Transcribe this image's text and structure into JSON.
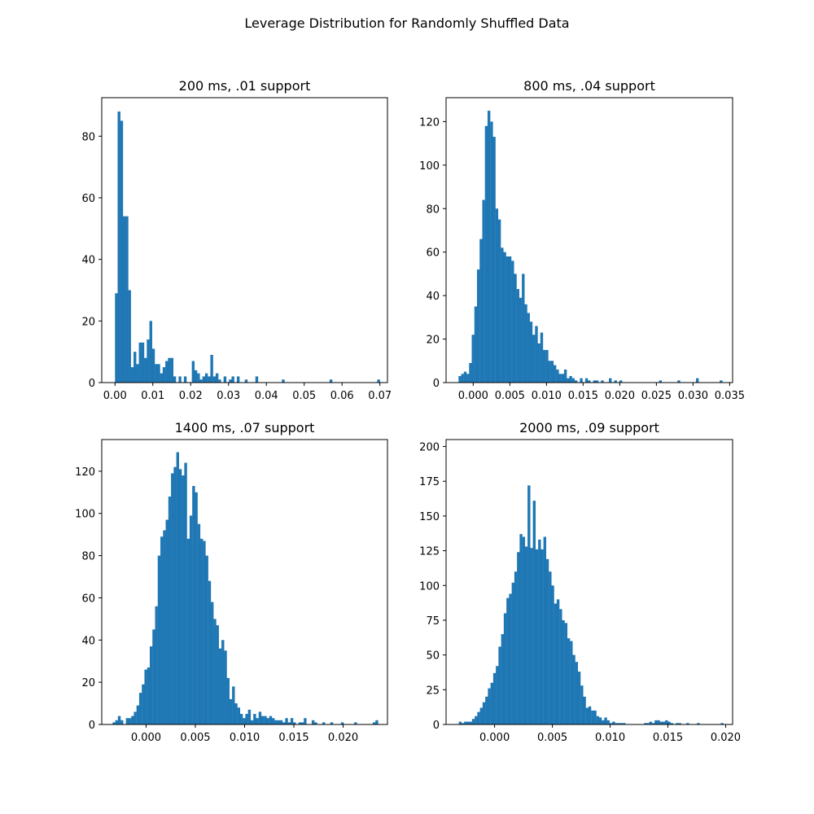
{
  "figure": {
    "title": "Leverage Distribution for Randomly Shuffled Data",
    "bar_color": "#1f77b4"
  },
  "chart_data": [
    {
      "type": "bar",
      "title": "200 ms, .01 support",
      "xlim": [
        -0.0035,
        0.072
      ],
      "ylim": [
        0,
        92.5
      ],
      "xticks": [
        0.0,
        0.01,
        0.02,
        0.03,
        0.04,
        0.05,
        0.06,
        0.07
      ],
      "xtick_labels": [
        "0.00",
        "0.01",
        "0.02",
        "0.03",
        "0.04",
        "0.05",
        "0.06",
        "0.07"
      ],
      "yticks": [
        0,
        20,
        40,
        60,
        80
      ],
      "ytick_labels": [
        "0",
        "20",
        "40",
        "60",
        "80"
      ],
      "bin_start": 0.0,
      "bin_width": 0.0007,
      "counts": [
        29,
        88,
        85,
        54,
        54,
        30,
        5,
        10,
        6,
        13,
        13,
        8,
        14,
        20,
        11,
        6,
        6,
        3,
        5,
        7,
        8,
        8,
        2,
        0,
        2,
        0,
        2,
        0,
        0,
        7,
        4,
        3,
        1,
        2,
        3,
        2,
        9,
        2,
        3,
        1,
        0,
        2,
        0,
        1,
        2,
        0,
        2,
        0,
        0,
        1,
        0,
        0,
        0,
        2,
        0,
        0,
        0,
        0,
        0,
        0,
        0,
        0,
        0,
        1,
        0,
        0,
        0,
        0,
        0,
        0,
        0,
        0,
        0,
        0,
        0,
        0,
        0,
        0,
        0,
        0,
        0,
        1,
        0,
        0,
        0,
        0,
        0,
        0,
        0,
        0,
        0,
        0,
        0,
        0,
        0,
        0,
        0,
        0,
        0,
        1
      ]
    },
    {
      "type": "bar",
      "title": "800 ms, .04 support",
      "xlim": [
        -0.0037,
        0.0354
      ],
      "ylim": [
        0,
        131
      ],
      "xticks": [
        0.0,
        0.005,
        0.01,
        0.015,
        0.02,
        0.025,
        0.03,
        0.035
      ],
      "xtick_labels": [
        "0.000",
        "0.005",
        "0.010",
        "0.015",
        "0.020",
        "0.025",
        "0.030",
        "0.035"
      ],
      "yticks": [
        0,
        20,
        40,
        60,
        80,
        100,
        120
      ],
      "ytick_labels": [
        "0",
        "20",
        "40",
        "60",
        "80",
        "100",
        "120"
      ],
      "bin_start": -0.002,
      "bin_width": 0.00036,
      "counts": [
        3,
        4,
        5,
        4,
        9,
        22,
        35,
        52,
        66,
        84,
        118,
        125,
        120,
        113,
        80,
        75,
        62,
        60,
        58,
        58,
        56,
        50,
        43,
        39,
        50,
        36,
        32,
        28,
        22,
        26,
        18,
        23,
        15,
        15,
        10,
        10,
        8,
        6,
        4,
        4,
        6,
        2,
        3,
        2,
        1,
        0,
        2,
        0,
        2,
        1,
        0,
        1,
        1,
        0,
        1,
        0,
        0,
        2,
        0,
        1,
        0,
        1,
        0,
        0,
        0,
        0,
        0,
        0,
        0,
        0,
        0,
        0,
        0,
        0,
        0,
        0,
        1,
        0,
        0,
        0,
        0,
        0,
        0,
        1,
        0,
        0,
        0,
        0,
        0,
        0,
        2,
        0,
        0,
        0,
        0,
        0,
        0,
        0,
        0,
        1
      ]
    },
    {
      "type": "bar",
      "title": "1400 ms, .07 support",
      "xlim": [
        -0.0045,
        0.0245
      ],
      "ylim": [
        0,
        135
      ],
      "xticks": [
        0.0,
        0.005,
        0.01,
        0.015,
        0.02
      ],
      "xtick_labels": [
        "0.000",
        "0.005",
        "0.010",
        "0.015",
        "0.020"
      ],
      "yticks": [
        0,
        20,
        40,
        60,
        80,
        100,
        120
      ],
      "ytick_labels": [
        "0",
        "20",
        "40",
        "60",
        "80",
        "100",
        "120"
      ],
      "bin_start": -0.0034,
      "bin_width": 0.0002695,
      "counts": [
        1,
        2,
        4,
        2,
        0,
        3,
        3,
        4,
        6,
        9,
        15,
        19,
        26,
        27,
        37,
        45,
        56,
        80,
        89,
        92,
        97,
        108,
        119,
        122,
        129,
        121,
        118,
        124,
        88,
        99,
        113,
        110,
        95,
        88,
        87,
        80,
        68,
        58,
        50,
        47,
        36,
        40,
        35,
        22,
        12,
        18,
        10,
        8,
        5,
        3,
        5,
        7,
        2,
        5,
        3,
        6,
        4,
        4,
        3,
        4,
        3,
        2,
        2,
        2,
        1,
        3,
        1,
        3,
        1,
        0,
        1,
        1,
        3,
        0,
        0,
        2,
        1,
        0,
        0,
        1,
        0,
        0,
        1,
        0,
        0,
        0,
        1,
        0,
        0,
        0,
        0,
        1,
        0,
        0,
        0,
        0,
        0,
        0,
        1,
        2
      ]
    },
    {
      "type": "bar",
      "title": "2000 ms, .09 support",
      "xlim": [
        -0.0042,
        0.0206
      ],
      "ylim": [
        0,
        205
      ],
      "xticks": [
        0.0,
        0.005,
        0.01,
        0.015,
        0.02
      ],
      "xtick_labels": [
        "0.000",
        "0.005",
        "0.010",
        "0.015",
        "0.020"
      ],
      "yticks": [
        0,
        25,
        50,
        75,
        100,
        125,
        150,
        175,
        200
      ],
      "ytick_labels": [
        "0",
        "25",
        "50",
        "75",
        "100",
        "125",
        "150",
        "175",
        "200"
      ],
      "bin_start": -0.0031,
      "bin_width": 0.000229,
      "counts": [
        2,
        1,
        2,
        2,
        2,
        4,
        6,
        9,
        12,
        16,
        20,
        26,
        30,
        37,
        42,
        56,
        65,
        80,
        91,
        94,
        102,
        110,
        124,
        137,
        135,
        128,
        172,
        127,
        161,
        126,
        133,
        126,
        135,
        119,
        110,
        100,
        87,
        90,
        83,
        75,
        73,
        62,
        60,
        50,
        45,
        38,
        28,
        20,
        12,
        13,
        10,
        10,
        6,
        5,
        3,
        5,
        3,
        1,
        2,
        1,
        1,
        1,
        1,
        0,
        0,
        0,
        0,
        0,
        0,
        0,
        1,
        1,
        2,
        1,
        3,
        3,
        2,
        2,
        3,
        2,
        1,
        0,
        1,
        1,
        0,
        0,
        1,
        0,
        0,
        0,
        1,
        0,
        0,
        0,
        0,
        0,
        0,
        0,
        0,
        1
      ]
    }
  ]
}
